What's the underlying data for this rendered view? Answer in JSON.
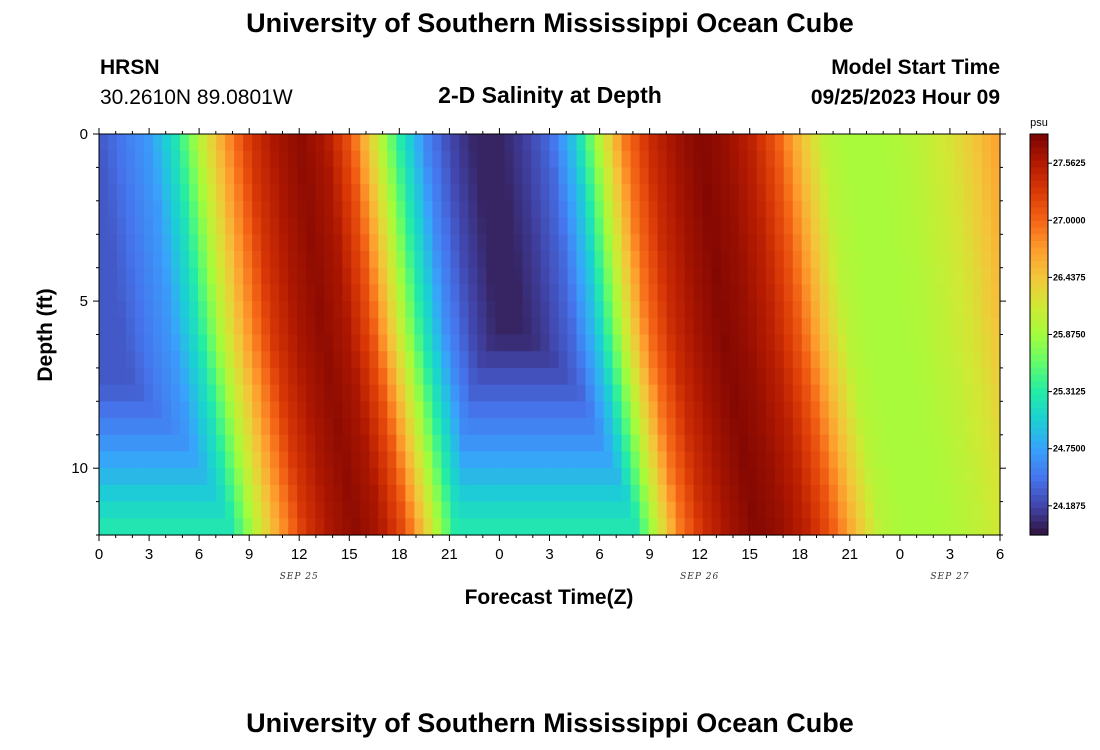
{
  "header": {
    "title": "University of Southern Mississippi Ocean Cube",
    "station": "HRSN",
    "coordinates": "30.2610N  89.0801W",
    "model_label": "Model Start Time",
    "model_time": "09/25/2023 Hour 09"
  },
  "footer": {
    "title": "University of Southern Mississippi Ocean Cube"
  },
  "chart_data": {
    "type": "heatmap",
    "title": "2-D Salinity at Depth",
    "xlabel": "Forecast Time(Z)",
    "ylabel": "Depth (ft)",
    "x_ticks": [
      "0",
      "3",
      "6",
      "9",
      "12",
      "15",
      "18",
      "21",
      "0",
      "3",
      "6",
      "9",
      "12",
      "15",
      "18",
      "21",
      "0",
      "3",
      "6"
    ],
    "date_labels": [
      {
        "label": "SEP 25",
        "x_tick": 4
      },
      {
        "label": "SEP 26",
        "x_tick": 12
      },
      {
        "label": "SEP 27",
        "x_tick": 17
      }
    ],
    "x_range_hours": [
      0,
      54
    ],
    "y_ticks": [
      0,
      5,
      10
    ],
    "y_range_ft": [
      0,
      12
    ],
    "colorbar": {
      "unit": "psu",
      "ticks": [
        "27.5625",
        "27.0000",
        "26.4375",
        "25.8750",
        "25.3125",
        "24.7500",
        "24.1875"
      ],
      "range": [
        23.9,
        27.85
      ],
      "colors": [
        "#30123b",
        "#4145ab",
        "#4675ed",
        "#39a2fc",
        "#1bcfd4",
        "#24eca6",
        "#61fc6c",
        "#a4fc3b",
        "#d1e834",
        "#f3c63a",
        "#fe9b2d",
        "#f36315",
        "#d93806",
        "#b11901",
        "#7a0402"
      ]
    },
    "time_profile_hours": [
      0,
      1.5,
      3,
      4.5,
      6,
      7.5,
      9,
      10.5,
      12,
      13.5,
      15,
      16.5,
      18,
      19.5,
      21,
      22.5,
      24,
      25.5,
      27,
      28.5,
      30,
      31.5,
      33,
      34.5,
      36,
      37.5,
      39,
      40.5,
      42,
      43.5,
      45,
      46.5,
      48,
      49.5,
      51,
      52.5,
      54
    ],
    "surface_salinity_psu": [
      24.3,
      24.5,
      24.7,
      25.2,
      26.0,
      26.7,
      27.3,
      27.6,
      27.75,
      27.6,
      27.1,
      26.2,
      25.3,
      24.6,
      24.2,
      24.0,
      24.0,
      24.15,
      24.4,
      25.0,
      26.0,
      26.9,
      27.4,
      27.65,
      27.8,
      27.7,
      27.5,
      27.1,
      26.5,
      26.0,
      25.9,
      25.9,
      25.95,
      26.05,
      26.2,
      26.45,
      26.7
    ],
    "depth_profile": [
      {
        "depth_ft": 0,
        "lag_hours": 0,
        "min_salinity_psu": 23.9
      },
      {
        "depth_ft": 3,
        "lag_hours": 0.7,
        "min_salinity_psu": 23.9
      },
      {
        "depth_ft": 6,
        "lag_hours": 1.4,
        "min_salinity_psu": 24.0
      },
      {
        "depth_ft": 9,
        "lag_hours": 2.4,
        "min_salinity_psu": 24.6
      },
      {
        "depth_ft": 12,
        "lag_hours": 3.4,
        "min_salinity_psu": 25.3
      }
    ]
  }
}
